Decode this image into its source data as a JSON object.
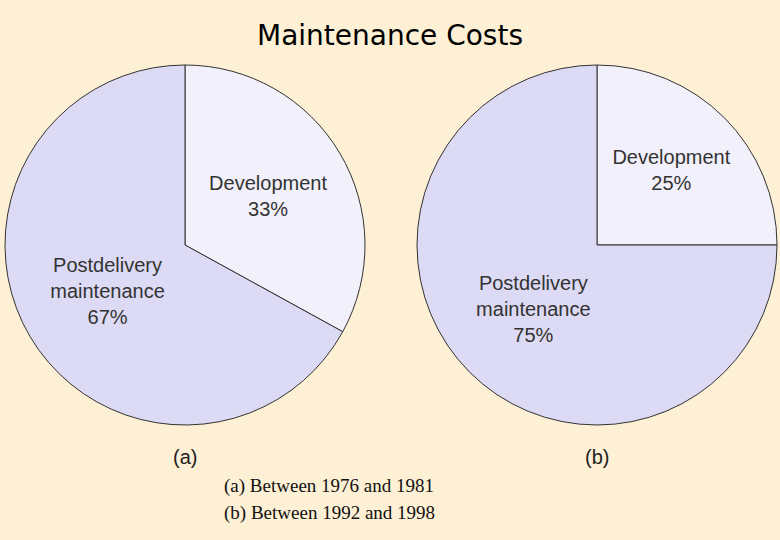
{
  "title": "Maintenance Costs",
  "annotations": [
    "(a) Between 1976 and 1981",
    "(b) Between 1992 and 1998"
  ],
  "chart_data": [
    {
      "type": "pie",
      "title": "(a)",
      "categories": [
        "Development",
        "Postdelivery maintenance"
      ],
      "values": [
        33,
        67
      ],
      "value_labels": [
        "33%",
        "67%"
      ],
      "colors": [
        "#f1f0fb",
        "#dcdaf4"
      ],
      "data_labels": true
    },
    {
      "type": "pie",
      "title": "(b)",
      "categories": [
        "Development",
        "Postdelivery maintenance"
      ],
      "values": [
        25,
        75
      ],
      "value_labels": [
        "25%",
        "75%"
      ],
      "colors": [
        "#f1f0fb",
        "#dcdaf4"
      ],
      "data_labels": true
    }
  ]
}
